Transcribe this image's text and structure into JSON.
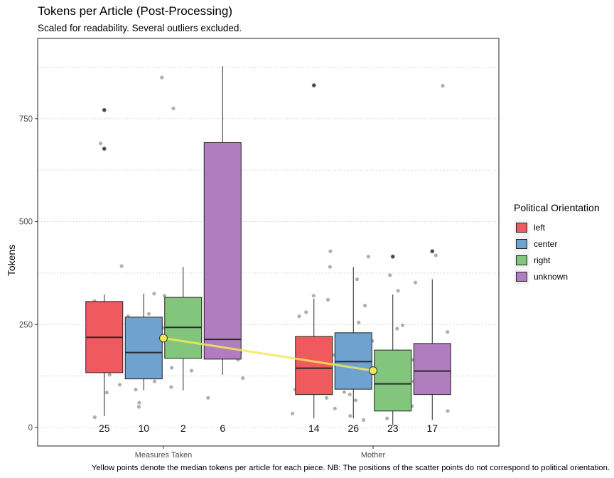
{
  "chart_data": {
    "type": "boxplot",
    "title": "Tokens per Article (Post-Processing)",
    "subtitle": "Scaled for readability. Several outliers excluded.",
    "caption": "Yellow points denote the median tokens per article for each piece. NB: The positions of the scatter points do not correspond to political orientation.",
    "ylabel": "Tokens",
    "xlabel": "",
    "ylim": [
      -45,
      945
    ],
    "yticks": [
      0,
      250,
      500,
      750
    ],
    "grid": "horizontal dotted",
    "categories": [
      "Measures Taken",
      "Mother"
    ],
    "legend": {
      "title": "Political Orientation",
      "position": "right"
    },
    "colors": {
      "left": "#EE5A5E",
      "center": "#6FA2CF",
      "right": "#82C57D",
      "unknown": "#B07DBE",
      "median_point": "#F2E85A",
      "scatter": "#A6A6A6"
    },
    "series": [
      {
        "name": "left",
        "color": "#EE5A5E",
        "boxes": [
          {
            "category": "Measures Taken",
            "q1": 133,
            "median": 219,
            "q3": 306,
            "whisker_low": 28,
            "whisker_high": 323,
            "count": "25",
            "outliers": [
              771,
              677
            ]
          },
          {
            "category": "Mother",
            "q1": 80,
            "median": 144,
            "q3": 221,
            "whisker_low": 22,
            "whisker_high": 313,
            "count": "14",
            "outliers": [
              831
            ]
          }
        ]
      },
      {
        "name": "center",
        "color": "#6FA2CF",
        "boxes": [
          {
            "category": "Measures Taken",
            "q1": 118,
            "median": 182,
            "q3": 268,
            "whisker_low": 90,
            "whisker_high": 325,
            "count": "10",
            "outliers": []
          },
          {
            "category": "Mother",
            "q1": 93,
            "median": 160,
            "q3": 230,
            "whisker_low": 22,
            "whisker_high": 390,
            "count": "26",
            "outliers": []
          }
        ]
      },
      {
        "name": "right",
        "color": "#82C57D",
        "boxes": [
          {
            "category": "Measures Taken",
            "q1": 168,
            "median": 243,
            "q3": 316,
            "whisker_low": 90,
            "whisker_high": 390,
            "count": "2",
            "outliers": []
          },
          {
            "category": "Mother",
            "q1": 40,
            "median": 106,
            "q3": 188,
            "whisker_low": 5,
            "whisker_high": 323,
            "count": "23",
            "outliers": [
              415
            ]
          }
        ]
      },
      {
        "name": "unknown",
        "color": "#B07DBE",
        "boxes": [
          {
            "category": "Measures Taken",
            "q1": 166,
            "median": 214,
            "q3": 692,
            "whisker_low": 128,
            "whisker_high": 877,
            "count": "6",
            "outliers": []
          },
          {
            "category": "Mother",
            "q1": 80,
            "median": 137,
            "q3": 204,
            "whisker_low": 18,
            "whisker_high": 360,
            "count": "17",
            "outliers": [
              428
            ]
          }
        ]
      }
    ],
    "median_line": {
      "name": "median tokens per article",
      "points": [
        {
          "category": "Measures Taken",
          "value": 217
        },
        {
          "category": "Mother",
          "value": 138
        }
      ]
    },
    "scatter_points": [
      {
        "category": "Measures Taken",
        "values": [
          850,
          775,
          690,
          392,
          325,
          320,
          307,
          296,
          285,
          276,
          270,
          265,
          258,
          250,
          242,
          238,
          232,
          228,
          222,
          215,
          205,
          196,
          190,
          182,
          176,
          170,
          165,
          158,
          150,
          145,
          138,
          132,
          128,
          120,
          112,
          104,
          98,
          92,
          85,
          72,
          60,
          50,
          25
        ]
      },
      {
        "category": "Mother",
        "values": [
          830,
          428,
          418,
          415,
          390,
          370,
          360,
          352,
          332,
          320,
          310,
          296,
          280,
          270,
          255,
          248,
          240,
          232,
          225,
          218,
          210,
          205,
          198,
          190,
          184,
          176,
          170,
          164,
          157,
          150,
          145,
          138,
          132,
          128,
          120,
          112,
          105,
          98,
          92,
          86,
          80,
          72,
          66,
          58,
          52,
          46,
          40,
          34,
          28,
          22,
          18
        ]
      }
    ]
  }
}
